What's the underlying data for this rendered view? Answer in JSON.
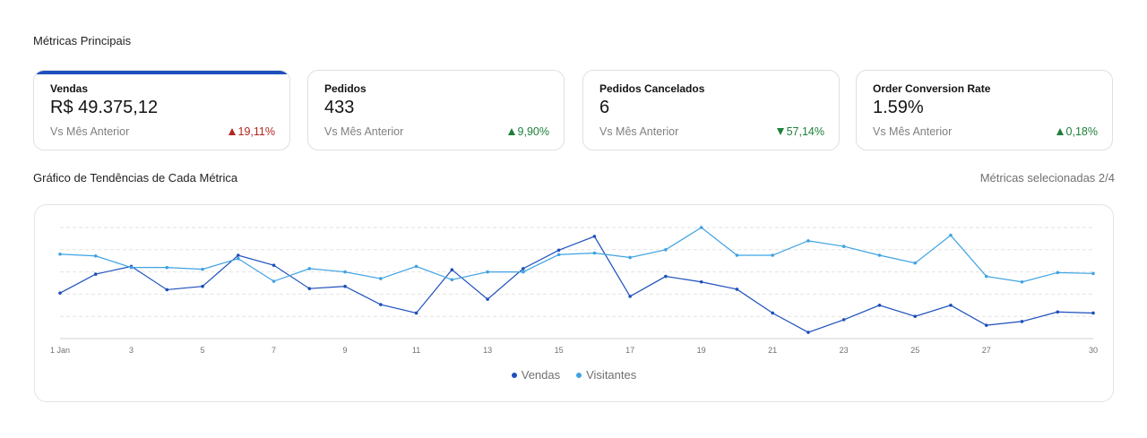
{
  "header": {
    "title": "Métricas Principais"
  },
  "cards": [
    {
      "label": "Vendas",
      "value": "R$ 49.375,12",
      "compare": "Vs Mês Anterior",
      "delta": "19,11%",
      "direction": "up",
      "color": "#b3261e",
      "selected": true
    },
    {
      "label": "Pedidos",
      "value": "433",
      "compare": "Vs Mês Anterior",
      "delta": "9,90%",
      "direction": "up",
      "color": "#1e7f3a",
      "selected": false
    },
    {
      "label": "Pedidos Cancelados",
      "value": "6",
      "compare": "Vs Mês Anterior",
      "delta": "57,14%",
      "direction": "down",
      "color": "#1e7f3a",
      "selected": false
    },
    {
      "label": "Order Conversion Rate",
      "value": "1.59%",
      "compare": "Vs Mês Anterior",
      "delta": "0,18%",
      "direction": "up",
      "color": "#1e7f3a",
      "selected": false
    }
  ],
  "chart_section": {
    "title": "Gráfico de Tendências de Cada Métrica",
    "selected_metrics": "Métricas selecionadas 2/4"
  },
  "chart_data": {
    "type": "line",
    "x": [
      1,
      2,
      3,
      4,
      5,
      6,
      7,
      8,
      9,
      10,
      11,
      12,
      13,
      14,
      15,
      16,
      17,
      18,
      19,
      20,
      21,
      22,
      23,
      24,
      25,
      26,
      27,
      28,
      29,
      30
    ],
    "x_tick_labels": [
      {
        "x": 1,
        "label": "1 Jan"
      },
      {
        "x": 3,
        "label": "3"
      },
      {
        "x": 5,
        "label": "5"
      },
      {
        "x": 7,
        "label": "7"
      },
      {
        "x": 9,
        "label": "9"
      },
      {
        "x": 11,
        "label": "11"
      },
      {
        "x": 13,
        "label": "13"
      },
      {
        "x": 15,
        "label": "15"
      },
      {
        "x": 17,
        "label": "17"
      },
      {
        "x": 19,
        "label": "19"
      },
      {
        "x": 21,
        "label": "21"
      },
      {
        "x": 23,
        "label": "23"
      },
      {
        "x": 25,
        "label": "25"
      },
      {
        "x": 27,
        "label": "27"
      },
      {
        "x": 30,
        "label": "30"
      }
    ],
    "ylim": [
      0,
      5
    ],
    "grid": true,
    "legend": "bottom-center",
    "series": [
      {
        "name": "Vendas",
        "color": "#1d4fbd",
        "values": [
          2.05,
          2.9,
          3.25,
          2.2,
          2.35,
          3.75,
          3.3,
          2.25,
          2.35,
          1.53,
          1.15,
          3.1,
          1.77,
          3.15,
          3.98,
          4.6,
          1.9,
          2.8,
          2.55,
          2.22,
          1.15,
          0.28,
          0.85,
          1.5,
          1.0,
          1.5,
          0.6,
          0.77,
          1.2,
          1.15
        ]
      },
      {
        "name": "Visitantes",
        "color": "#3ea2e2",
        "values": [
          3.8,
          3.72,
          3.2,
          3.2,
          3.12,
          3.6,
          2.58,
          3.15,
          3.0,
          2.7,
          3.25,
          2.65,
          3.0,
          3.0,
          3.78,
          3.85,
          3.65,
          4.0,
          5.0,
          3.75,
          3.75,
          4.4,
          4.15,
          3.75,
          3.4,
          4.65,
          2.8,
          2.55,
          2.97,
          2.93
        ]
      }
    ]
  }
}
